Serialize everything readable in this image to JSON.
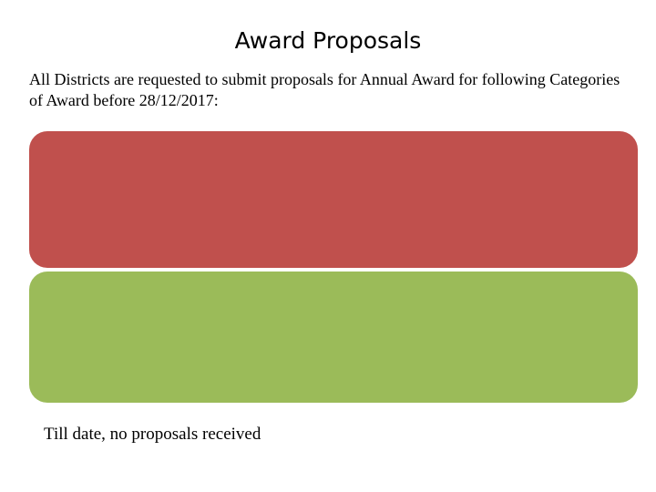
{
  "header": {
    "title": "Award Proposals"
  },
  "intro": {
    "text": "All Districts are requested to submit proposals for Annual Award for following Categories of Award before 28/12/2017:"
  },
  "footer": {
    "text": "Till date, no proposals received"
  }
}
